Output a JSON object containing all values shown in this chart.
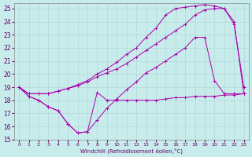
{
  "xlabel": "Windchill (Refroidissement éolien,°C)",
  "bg_color": "#c8ecec",
  "grid_color": "#b0d8d8",
  "line_color": "#aa00aa",
  "xlim": [
    -0.5,
    23.5
  ],
  "ylim": [
    15,
    25.4
  ],
  "yticks": [
    15,
    16,
    17,
    18,
    19,
    20,
    21,
    22,
    23,
    24,
    25
  ],
  "xticks": [
    0,
    1,
    2,
    3,
    4,
    5,
    6,
    7,
    8,
    9,
    10,
    11,
    12,
    13,
    14,
    15,
    16,
    17,
    18,
    19,
    20,
    21,
    22,
    23
  ],
  "line1_x": [
    0,
    1,
    2,
    3,
    4,
    5,
    6,
    7,
    8,
    9,
    10,
    11,
    12,
    13,
    14,
    15,
    16,
    17,
    18,
    19,
    20,
    21,
    22,
    23
  ],
  "line1_y": [
    19,
    18.3,
    18.0,
    17.5,
    17.2,
    16.2,
    15.5,
    15.6,
    18.6,
    18.0,
    18.0,
    18.0,
    18.0,
    18.0,
    18.0,
    18.1,
    18.2,
    18.2,
    18.3,
    18.3,
    18.3,
    18.4,
    18.4,
    18.5
  ],
  "line2_x": [
    0,
    1,
    2,
    3,
    4,
    5,
    6,
    7,
    8,
    9,
    10,
    11,
    12,
    13,
    14,
    15,
    16,
    17,
    18,
    19,
    20,
    21,
    22,
    23
  ],
  "line2_y": [
    19,
    18.5,
    18.5,
    18.5,
    18.7,
    18.9,
    19.1,
    19.4,
    19.8,
    20.1,
    20.4,
    20.8,
    21.3,
    21.8,
    22.3,
    22.8,
    23.3,
    23.8,
    24.5,
    24.9,
    25.0,
    25.0,
    24.0,
    18.5
  ],
  "line3_x": [
    0,
    1,
    2,
    3,
    4,
    5,
    6,
    7,
    8,
    9,
    10,
    11,
    12,
    13,
    14,
    15,
    16,
    17,
    18,
    19,
    20,
    21,
    22,
    23
  ],
  "line3_y": [
    19,
    18.5,
    18.5,
    18.5,
    18.7,
    18.9,
    19.2,
    19.5,
    20.0,
    20.4,
    20.9,
    21.5,
    22.0,
    22.8,
    23.5,
    24.5,
    25.0,
    25.1,
    25.2,
    25.3,
    25.2,
    25.0,
    23.8,
    19.0
  ],
  "line4_x": [
    0,
    1,
    2,
    3,
    4,
    5,
    6,
    7,
    8,
    9,
    10,
    11,
    12,
    13,
    14,
    15,
    16,
    17,
    18,
    19,
    20,
    21,
    22,
    23
  ],
  "line4_y": [
    19,
    18.3,
    18.0,
    17.5,
    17.2,
    16.2,
    15.5,
    15.6,
    16.5,
    17.4,
    18.1,
    18.8,
    19.4,
    20.1,
    20.5,
    21.0,
    21.5,
    22.0,
    22.8,
    22.8,
    19.5,
    18.5,
    18.5,
    18.5
  ]
}
